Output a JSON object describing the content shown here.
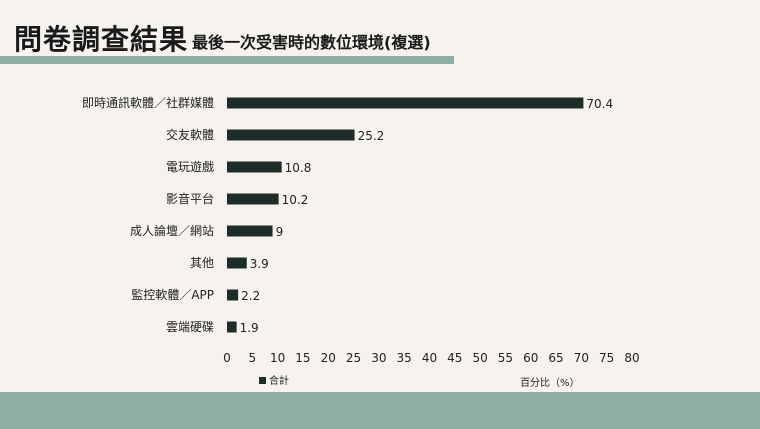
{
  "header": {
    "title": "問卷調查結果",
    "subtitle": "最後一次受害時的數位環境(複選)"
  },
  "chart_data": {
    "type": "bar",
    "orientation": "horizontal",
    "categories": [
      "即時通訊軟體／社群媒體",
      "交友軟體",
      "電玩遊戲",
      "影音平台",
      "成人論壇／網站",
      "其他",
      "監控軟體／APP",
      "雲端硬碟"
    ],
    "series": [
      {
        "name": "合計",
        "values": [
          70.4,
          25.2,
          10.8,
          10.2,
          9,
          3.9,
          2.2,
          1.9
        ]
      }
    ],
    "xlabel": "百分比（%）",
    "xlim": [
      0,
      80
    ],
    "xticks": [
      0,
      5,
      10,
      15,
      20,
      25,
      30,
      35,
      40,
      45,
      50,
      55,
      60,
      65,
      70,
      75,
      80
    ],
    "grid": false,
    "legend": "bottom-left",
    "bar_color": "#1e2d2a"
  }
}
